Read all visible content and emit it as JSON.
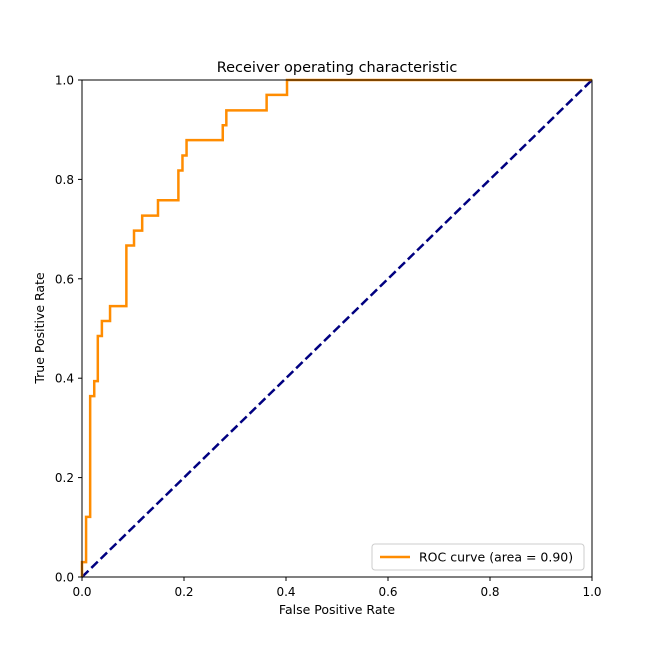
{
  "chart_data": {
    "type": "line",
    "title": "Receiver operating characteristic",
    "xlabel": "False Positive Rate",
    "ylabel": "True Positive Rate",
    "xlim": [
      0.0,
      1.0
    ],
    "ylim": [
      0.0,
      1.0
    ],
    "xticks": [
      "0.0",
      "0.2",
      "0.4",
      "0.6",
      "0.8",
      "1.0"
    ],
    "yticks": [
      "0.0",
      "0.2",
      "0.4",
      "0.6",
      "0.8",
      "1.0"
    ],
    "grid": false,
    "legend_position": "lower right",
    "series": [
      {
        "name": "ROC curve (area = 0.90)",
        "color": "#ff8c00",
        "style": "solid",
        "x": [
          0.0,
          0.0,
          0.008,
          0.008,
          0.016,
          0.016,
          0.024,
          0.024,
          0.031,
          0.031,
          0.039,
          0.039,
          0.055,
          0.055,
          0.087,
          0.087,
          0.102,
          0.102,
          0.118,
          0.118,
          0.149,
          0.149,
          0.189,
          0.189,
          0.197,
          0.197,
          0.205,
          0.205,
          0.276,
          0.276,
          0.283,
          0.283,
          0.362,
          0.362,
          0.402,
          0.402,
          1.0
        ],
        "y": [
          0.0,
          0.03,
          0.03,
          0.121,
          0.121,
          0.364,
          0.364,
          0.394,
          0.394,
          0.485,
          0.485,
          0.515,
          0.515,
          0.545,
          0.545,
          0.667,
          0.667,
          0.697,
          0.697,
          0.727,
          0.727,
          0.758,
          0.758,
          0.818,
          0.818,
          0.848,
          0.848,
          0.879,
          0.879,
          0.909,
          0.909,
          0.939,
          0.939,
          0.97,
          0.97,
          1.0,
          1.0
        ]
      },
      {
        "name": "",
        "color": "#000080",
        "style": "dashed",
        "x": [
          0.0,
          1.0
        ],
        "y": [
          0.0,
          1.0
        ]
      }
    ]
  }
}
